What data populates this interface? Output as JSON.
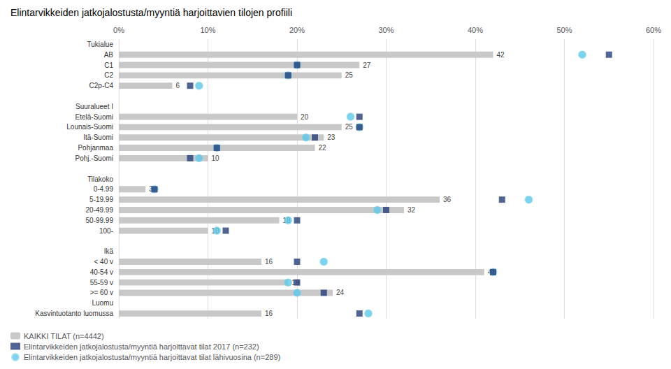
{
  "chart_data": {
    "type": "bar",
    "orientation": "horizontal",
    "title": "Elintarvikkeiden jatkojalostusta/myyntiä harjoittavien tilojen profiili",
    "categories": [
      "Tukialue",
      "AB",
      "C1",
      "C2",
      "C2p-C4",
      null,
      "Suuralueet I",
      "Etelä-Suomi",
      "Lounais-Suomi",
      "Itä-Suomi",
      "Pohjanmaa",
      "Pohj.-Suomi",
      null,
      "Tilakoko",
      "0-4.99",
      "5-19.99",
      "20-49.99",
      "50-99.99",
      "100-",
      null,
      "Ikä",
      "< 40 v",
      "40-54 v",
      "55-59 v",
      ">= 60 v",
      "Luomu",
      "Kasvintuotanto luomussa"
    ],
    "series": [
      {
        "name": "KAIKKI TILAT (n=4442)",
        "type": "bar",
        "color": "#c8c8c8",
        "data_labels": true,
        "values": [
          null,
          42,
          27,
          25,
          6,
          null,
          null,
          20,
          25,
          23,
          22,
          10,
          null,
          null,
          3,
          36,
          32,
          18,
          10,
          null,
          null,
          16,
          41,
          19,
          24,
          null,
          16
        ]
      },
      {
        "name": "Elintarvikkeiden jatkojalostusta/myyntiä harjoittavat tilat 2017 (n=232)",
        "type": "scatter",
        "marker": "square",
        "color": "#253f7a",
        "values": [
          null,
          55,
          20,
          19,
          8,
          null,
          null,
          27,
          27,
          22,
          11,
          8,
          null,
          null,
          4,
          43,
          30,
          20,
          12,
          null,
          null,
          20,
          42,
          20,
          23,
          null,
          27
        ]
      },
      {
        "name": "Elintarvikkeiden jatkojalostusta/myyntiä harjoittavat tilat lähivuosina (n=289)",
        "type": "scatter",
        "marker": "circle",
        "color": "#5bc8e8",
        "values": [
          null,
          52,
          20,
          19,
          9,
          null,
          null,
          26,
          27,
          21,
          11,
          9,
          null,
          null,
          4,
          46,
          29,
          19,
          11,
          null,
          null,
          23,
          42,
          19,
          20,
          null,
          28
        ]
      }
    ],
    "xlim": [
      0,
      60
    ],
    "xticks": [
      {
        "value": 0,
        "label": "0%"
      },
      {
        "value": 10,
        "label": "10%"
      },
      {
        "value": 20,
        "label": "20%"
      },
      {
        "value": 30,
        "label": "30%"
      },
      {
        "value": 40,
        "label": "40%"
      },
      {
        "value": 50,
        "label": "50%"
      },
      {
        "value": 60,
        "label": "60%"
      }
    ],
    "grid": true,
    "legend": "lower left"
  }
}
